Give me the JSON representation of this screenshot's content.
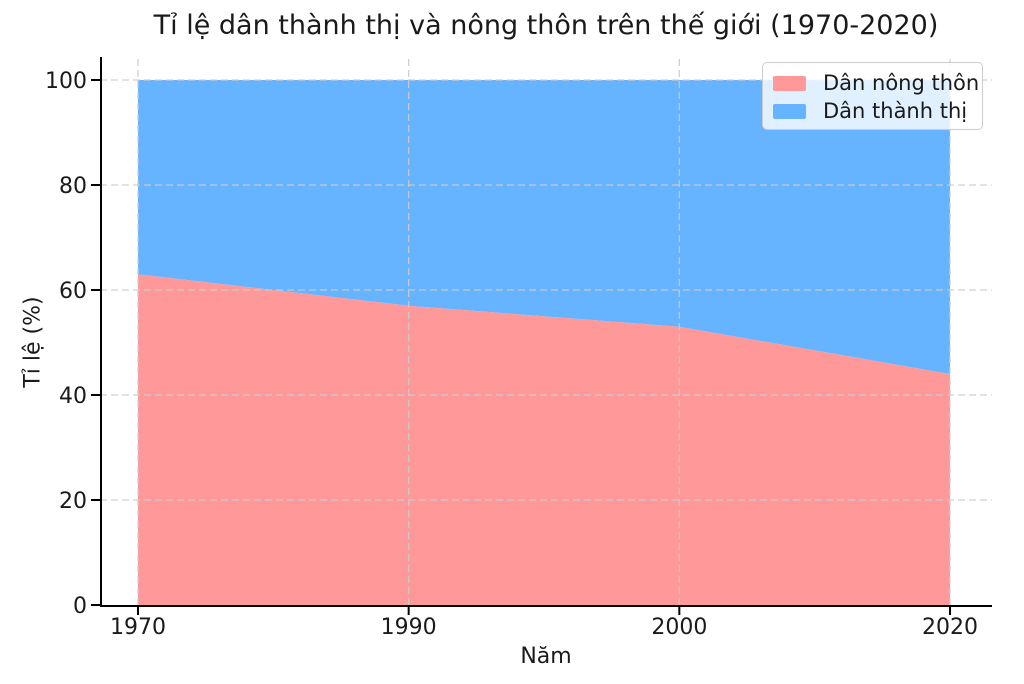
{
  "page": {
    "background": "#ffffff",
    "text_color": "#1a1a1a",
    "axis_color": "#000000"
  },
  "chart_data": {
    "type": "area",
    "stacked": true,
    "title": "Tỉ lệ dân thành thị và nông thôn trên thế giới (1970-2020)",
    "xlabel": "Năm",
    "ylabel": "Tỉ lệ (%)",
    "categories": [
      "1970",
      "1990",
      "2000",
      "2020"
    ],
    "series": [
      {
        "name": "Dân nông thôn",
        "color": "#ff9999",
        "values": [
          63,
          57,
          53,
          44
        ]
      },
      {
        "name": "Dân thành thị",
        "color": "#66b3ff",
        "values": [
          37,
          43,
          47,
          56
        ]
      }
    ],
    "yticks": [
      0,
      20,
      40,
      60,
      80,
      100
    ],
    "ylim": [
      0,
      104.5
    ],
    "grid": {
      "show": true,
      "style": "dashed",
      "color": "#cccccc"
    },
    "legend": {
      "position": "top-right"
    }
  }
}
